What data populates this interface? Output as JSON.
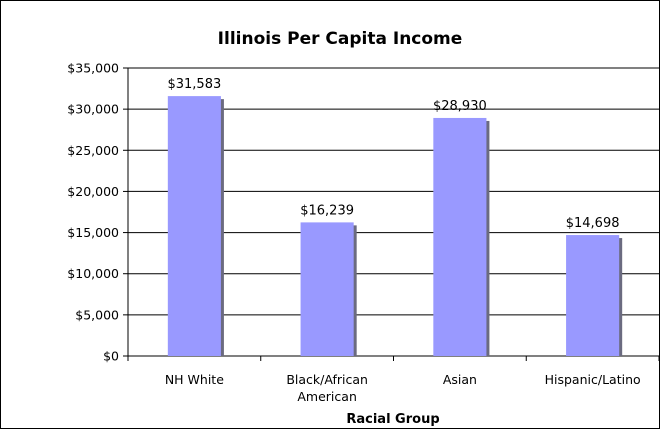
{
  "chart_data": {
    "type": "bar",
    "title": "Illinois Per Capita Income",
    "xlabel": "Racial Group",
    "ylabel": "",
    "categories": [
      "NH White",
      "Black/African American",
      "Asian",
      "Hispanic/Latino"
    ],
    "values": [
      31583,
      16239,
      28930,
      14698
    ],
    "data_labels": [
      "$31,583",
      "$16,239",
      "$28,930",
      "$14,698"
    ],
    "y_ticks": [
      0,
      5000,
      10000,
      15000,
      20000,
      25000,
      30000,
      35000
    ],
    "y_tick_labels": [
      "$0",
      "$5,000",
      "$10,000",
      "$15,000",
      "$20,000",
      "$25,000",
      "$30,000",
      "$35,000"
    ],
    "ylim": [
      0,
      35000
    ],
    "grid": true,
    "legend": "none",
    "bar_color": "#9999ff",
    "bar_shadow_color": "#6b6b80"
  }
}
